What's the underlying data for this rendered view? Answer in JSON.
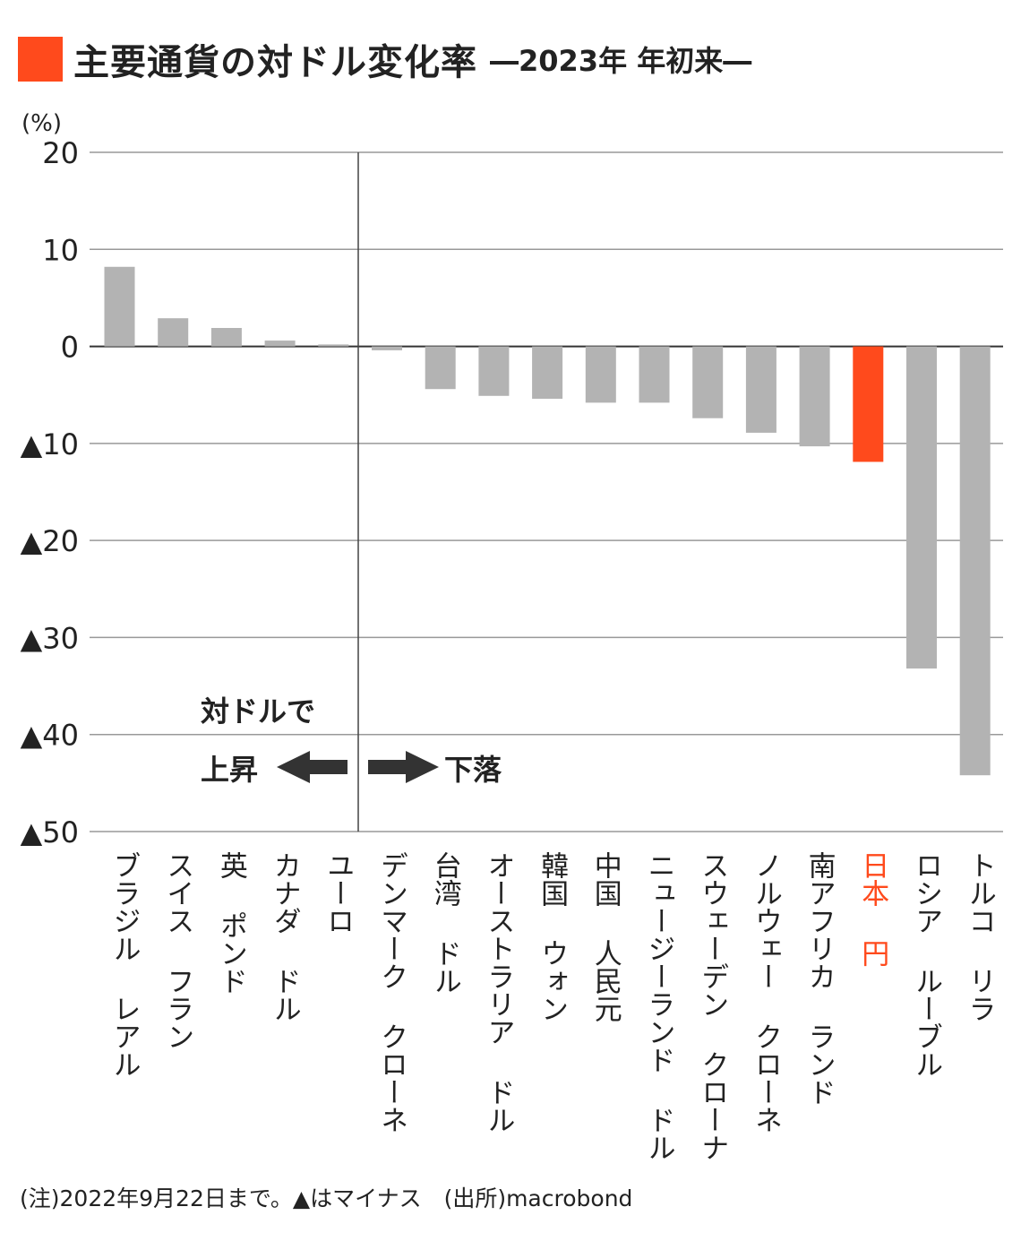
{
  "title": {
    "main": "主要通貨の対ドル変化率",
    "sub": "―2023年 年初来―",
    "marker_color": "#ff4a1c"
  },
  "chart_data": {
    "type": "bar",
    "title": "主要通貨の対ドル変化率",
    "subtitle": "―2023年 年初来―",
    "ylabel": "(%)",
    "ylim": [
      -50,
      20
    ],
    "yticks": [
      20,
      10,
      0,
      -10,
      -20,
      -30,
      -40,
      -50
    ],
    "ytick_labels": [
      "20",
      "10",
      "0",
      "▲10",
      "▲20",
      "▲30",
      "▲40",
      "▲50"
    ],
    "grid": true,
    "categories": [
      "ブラジル レアル",
      "スイス フラン",
      "英 ポンド",
      "カナダ ドル",
      "ユーロ",
      "デンマーク クローネ",
      "台湾 ドル",
      "オーストラリア ドル",
      "韓国 ウォン",
      "中国 人民元",
      "ニュージーランド ドル",
      "スウェーデン クローナ",
      "ノルウェー クローネ",
      "南アフリカ ランド",
      "日本 円",
      "ロシア ルーブル",
      "トルコ リラ"
    ],
    "values": [
      8.2,
      2.9,
      1.9,
      0.6,
      0.2,
      -0.4,
      -4.4,
      -5.1,
      -5.4,
      -5.8,
      -5.8,
      -7.4,
      -8.9,
      -10.3,
      -11.9,
      -33.2,
      -44.2
    ],
    "highlight_category": "日本 円",
    "colors": {
      "bar": "#b3b3b3",
      "highlight": "#ff4a1c",
      "grid": "#999999",
      "text": "#222222"
    },
    "annotations": {
      "heading": "対ドルで",
      "left": "上昇",
      "right": "下落"
    }
  },
  "footnote": "(注)2022年9月22日まで。▲はマイナス　(出所)macrobond"
}
